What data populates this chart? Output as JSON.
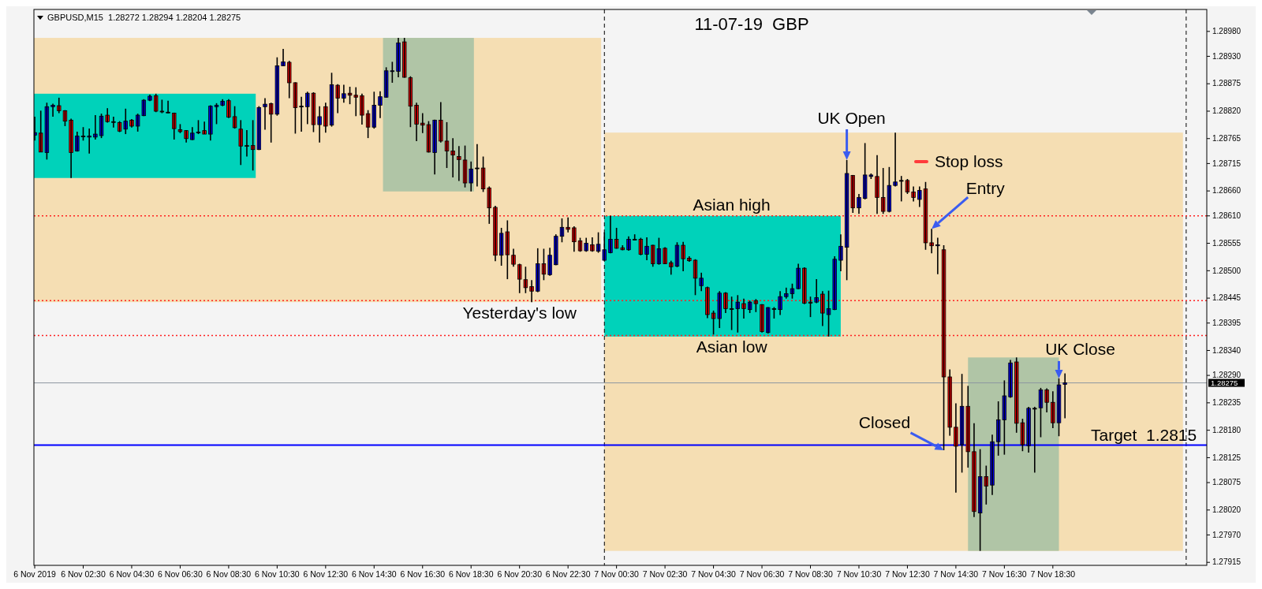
{
  "chart_data": {
    "type": "candlestick",
    "title": "11-07-19  GBP",
    "subtitle": "GBPUSD,M15  1.28272 1.28294 1.28204 1.28275",
    "x": [
      "2019-11-06T00:30",
      "2019-11-06T00:45",
      "2019-11-06T01:00",
      "2019-11-06T01:15",
      "2019-11-06T01:30",
      "2019-11-06T01:45",
      "2019-11-06T02:00",
      "2019-11-06T02:15",
      "2019-11-06T02:30",
      "2019-11-06T02:45",
      "2019-11-06T03:00",
      "2019-11-06T03:15",
      "2019-11-06T03:30",
      "2019-11-06T03:45",
      "2019-11-06T04:00",
      "2019-11-06T04:15",
      "2019-11-06T04:30",
      "2019-11-06T04:45",
      "2019-11-06T05:00",
      "2019-11-06T05:15",
      "2019-11-06T05:30",
      "2019-11-06T05:45",
      "2019-11-06T06:00",
      "2019-11-06T06:15",
      "2019-11-06T06:30",
      "2019-11-06T06:45",
      "2019-11-06T07:00",
      "2019-11-06T07:15",
      "2019-11-06T07:30",
      "2019-11-06T07:45",
      "2019-11-06T08:00",
      "2019-11-06T08:15",
      "2019-11-06T08:30",
      "2019-11-06T08:45",
      "2019-11-06T09:00",
      "2019-11-06T09:15",
      "2019-11-06T09:30",
      "2019-11-06T09:45",
      "2019-11-06T10:00",
      "2019-11-06T10:15",
      "2019-11-06T10:30",
      "2019-11-06T10:45",
      "2019-11-06T11:00",
      "2019-11-06T11:15",
      "2019-11-06T11:30",
      "2019-11-06T11:45",
      "2019-11-06T12:00",
      "2019-11-06T12:15",
      "2019-11-06T12:30",
      "2019-11-06T12:45",
      "2019-11-06T13:00",
      "2019-11-06T13:15",
      "2019-11-06T13:30",
      "2019-11-06T13:45",
      "2019-11-06T14:00",
      "2019-11-06T14:15",
      "2019-11-06T14:30",
      "2019-11-06T14:45",
      "2019-11-06T15:00",
      "2019-11-06T15:15",
      "2019-11-06T15:30",
      "2019-11-06T15:45",
      "2019-11-06T16:00",
      "2019-11-06T16:15",
      "2019-11-06T16:30",
      "2019-11-06T16:45",
      "2019-11-06T17:00",
      "2019-11-06T17:15",
      "2019-11-06T17:30",
      "2019-11-06T17:45",
      "2019-11-06T18:00",
      "2019-11-06T18:15",
      "2019-11-06T18:30",
      "2019-11-06T18:45",
      "2019-11-06T19:00",
      "2019-11-06T19:15",
      "2019-11-06T19:30",
      "2019-11-06T19:45",
      "2019-11-06T20:00",
      "2019-11-06T20:15",
      "2019-11-06T20:30",
      "2019-11-06T20:45",
      "2019-11-06T21:00",
      "2019-11-06T21:15",
      "2019-11-06T21:30",
      "2019-11-06T21:45",
      "2019-11-06T22:00",
      "2019-11-06T22:15",
      "2019-11-06T22:30",
      "2019-11-06T22:45",
      "2019-11-06T23:00",
      "2019-11-06T23:15",
      "2019-11-06T23:30",
      "2019-11-06T23:45",
      "2019-11-07T00:00",
      "2019-11-07T00:15",
      "2019-11-07T00:30",
      "2019-11-07T00:45",
      "2019-11-07T01:00",
      "2019-11-07T01:15",
      "2019-11-07T01:30",
      "2019-11-07T01:45",
      "2019-11-07T02:00",
      "2019-11-07T02:15",
      "2019-11-07T02:30",
      "2019-11-07T02:45",
      "2019-11-07T03:00",
      "2019-11-07T03:15",
      "2019-11-07T03:30",
      "2019-11-07T03:45",
      "2019-11-07T04:00",
      "2019-11-07T04:15",
      "2019-11-07T04:30",
      "2019-11-07T04:45",
      "2019-11-07T05:00",
      "2019-11-07T05:15",
      "2019-11-07T05:30",
      "2019-11-07T05:45",
      "2019-11-07T06:00",
      "2019-11-07T06:15",
      "2019-11-07T06:30",
      "2019-11-07T06:45",
      "2019-11-07T07:00",
      "2019-11-07T07:15",
      "2019-11-07T07:30",
      "2019-11-07T07:45",
      "2019-11-07T08:00",
      "2019-11-07T08:15",
      "2019-11-07T08:30",
      "2019-11-07T08:45",
      "2019-11-07T09:00",
      "2019-11-07T09:15",
      "2019-11-07T09:30",
      "2019-11-07T09:45",
      "2019-11-07T10:00",
      "2019-11-07T10:15",
      "2019-11-07T10:30",
      "2019-11-07T10:45",
      "2019-11-07T11:00",
      "2019-11-07T11:15",
      "2019-11-07T11:30",
      "2019-11-07T11:45",
      "2019-11-07T12:00",
      "2019-11-07T12:15",
      "2019-11-07T12:30",
      "2019-11-07T12:45",
      "2019-11-07T13:00",
      "2019-11-07T13:15",
      "2019-11-07T13:30",
      "2019-11-07T13:45",
      "2019-11-07T14:00",
      "2019-11-07T14:15",
      "2019-11-07T14:30",
      "2019-11-07T14:45",
      "2019-11-07T15:00",
      "2019-11-07T15:15",
      "2019-11-07T15:30",
      "2019-11-07T15:45",
      "2019-11-07T16:00",
      "2019-11-07T16:15",
      "2019-11-07T16:30",
      "2019-11-07T16:45",
      "2019-11-07T17:00",
      "2019-11-07T17:15",
      "2019-11-07T17:30",
      "2019-11-07T17:45",
      "2019-11-07T18:00",
      "2019-11-07T18:15",
      "2019-11-07T18:30",
      "2019-11-07T18:45",
      "2019-11-07T19:00"
    ],
    "ohlc": [
      [
        1.28772,
        1.28809,
        1.28761,
        1.28777
      ],
      [
        1.28776,
        1.28821,
        1.28738,
        1.28738
      ],
      [
        1.28737,
        1.28837,
        1.28723,
        1.28829
      ],
      [
        1.28829,
        1.28835,
        1.28809,
        1.28832
      ],
      [
        1.28831,
        1.28847,
        1.28816,
        1.28821
      ],
      [
        1.28821,
        1.28822,
        1.2879,
        1.288
      ],
      [
        1.28802,
        1.28805,
        1.28686,
        1.28737
      ],
      [
        1.2874,
        1.28779,
        1.28739,
        1.2877
      ],
      [
        1.2877,
        1.28788,
        1.28761,
        1.2877
      ],
      [
        1.28768,
        1.28785,
        1.28735,
        1.2877
      ],
      [
        1.28768,
        1.28812,
        1.28763,
        1.28774
      ],
      [
        1.28771,
        1.28815,
        1.28766,
        1.2881
      ],
      [
        1.28812,
        1.28826,
        1.28797,
        1.28799
      ],
      [
        1.28799,
        1.28809,
        1.28787,
        1.28799
      ],
      [
        1.28797,
        1.288,
        1.28778,
        1.2878
      ],
      [
        1.28784,
        1.28825,
        1.28774,
        1.288
      ],
      [
        1.28802,
        1.28804,
        1.28787,
        1.2879
      ],
      [
        1.2879,
        1.28815,
        1.28779,
        1.28812
      ],
      [
        1.28811,
        1.28844,
        1.2881,
        1.28842
      ],
      [
        1.28842,
        1.28853,
        1.2884,
        1.2885
      ],
      [
        1.28851,
        1.28855,
        1.28818,
        1.2882
      ],
      [
        1.2882,
        1.28843,
        1.28816,
        1.28819
      ],
      [
        1.28818,
        1.28841,
        1.28816,
        1.28818
      ],
      [
        1.28816,
        1.28817,
        1.28763,
        1.28785
      ],
      [
        1.28783,
        1.28794,
        1.28776,
        1.28779
      ],
      [
        1.28781,
        1.28782,
        1.28757,
        1.28765
      ],
      [
        1.28763,
        1.28788,
        1.28762,
        1.28776
      ],
      [
        1.28777,
        1.28802,
        1.28774,
        1.28778
      ],
      [
        1.28781,
        1.28799,
        1.28774,
        1.28774
      ],
      [
        1.28774,
        1.28832,
        1.28761,
        1.2883
      ],
      [
        1.28829,
        1.28836,
        1.28794,
        1.28832
      ],
      [
        1.28832,
        1.28844,
        1.2883,
        1.2884
      ],
      [
        1.28841,
        1.28844,
        1.28806,
        1.28808
      ],
      [
        1.28809,
        1.2883,
        1.28785,
        1.28787
      ],
      [
        1.28784,
        1.28802,
        1.28712,
        1.2875
      ],
      [
        1.28751,
        1.28782,
        1.28729,
        1.2875
      ],
      [
        1.28751,
        1.28802,
        1.28701,
        1.28743
      ],
      [
        1.28743,
        1.2883,
        1.28742,
        1.28827
      ],
      [
        1.28829,
        1.28846,
        1.28783,
        1.28834
      ],
      [
        1.28835,
        1.28837,
        1.28757,
        1.28814
      ],
      [
        1.28814,
        1.28928,
        1.28811,
        1.28911
      ],
      [
        1.28911,
        1.28945,
        1.2891,
        1.28919
      ],
      [
        1.28918,
        1.28921,
        1.28846,
        1.28877
      ],
      [
        1.28877,
        1.28878,
        1.28775,
        1.28827
      ],
      [
        1.2883,
        1.28849,
        1.28779,
        1.2883
      ],
      [
        1.28829,
        1.28859,
        1.28794,
        1.28856
      ],
      [
        1.28856,
        1.28858,
        1.28778,
        1.28793
      ],
      [
        1.28793,
        1.2883,
        1.28757,
        1.28809
      ],
      [
        1.28829,
        1.28837,
        1.28777,
        1.2879
      ],
      [
        1.28792,
        1.28897,
        1.28789,
        1.28873
      ],
      [
        1.28872,
        1.28874,
        1.28816,
        1.28846
      ],
      [
        1.28846,
        1.28873,
        1.28837,
        1.28855
      ],
      [
        1.28856,
        1.28869,
        1.28834,
        1.28852
      ],
      [
        1.28852,
        1.28868,
        1.2881,
        1.28848
      ],
      [
        1.28851,
        1.28855,
        1.28793,
        1.28812
      ],
      [
        1.28815,
        1.28822,
        1.28766,
        1.28788
      ],
      [
        1.28788,
        1.28859,
        1.28785,
        1.28832
      ],
      [
        1.28832,
        1.2886,
        1.28806,
        1.28849
      ],
      [
        1.28848,
        1.28908,
        1.28847,
        1.28901
      ],
      [
        1.289,
        1.28919,
        1.28877,
        1.28901
      ],
      [
        1.289,
        1.28967,
        1.28888,
        1.28957
      ],
      [
        1.28959,
        1.28967,
        1.28887,
        1.28888
      ],
      [
        1.28887,
        1.2889,
        1.28788,
        1.2883
      ],
      [
        1.28832,
        1.28837,
        1.2876,
        1.28794
      ],
      [
        1.28796,
        1.28816,
        1.28776,
        1.28792
      ],
      [
        1.28793,
        1.288,
        1.28737,
        1.28738
      ],
      [
        1.28737,
        1.28803,
        1.28693,
        1.28802
      ],
      [
        1.28802,
        1.28838,
        1.28757,
        1.2876
      ],
      [
        1.2876,
        1.28798,
        1.28706,
        1.2874
      ],
      [
        1.2874,
        1.28766,
        1.28687,
        1.28732
      ],
      [
        1.28729,
        1.2875,
        1.2868,
        1.28723
      ],
      [
        1.28722,
        1.28751,
        1.28667,
        1.28676
      ],
      [
        1.28676,
        1.28719,
        1.28659,
        1.28704
      ],
      [
        1.28706,
        1.28754,
        1.28669,
        1.28706
      ],
      [
        1.28706,
        1.28729,
        1.28658,
        1.28664
      ],
      [
        1.28666,
        1.28669,
        1.28594,
        1.28626
      ],
      [
        1.28627,
        1.2863,
        1.28519,
        1.28531
      ],
      [
        1.28531,
        1.28586,
        1.2851,
        1.28575
      ],
      [
        1.28578,
        1.28601,
        1.28483,
        1.28532
      ],
      [
        1.28531,
        1.28544,
        1.28508,
        1.28513
      ],
      [
        1.28512,
        1.28514,
        1.28455,
        1.28483
      ],
      [
        1.28482,
        1.28508,
        1.28455,
        1.28466
      ],
      [
        1.28468,
        1.28481,
        1.28437,
        1.28459
      ],
      [
        1.28459,
        1.28545,
        1.28457,
        1.28514
      ],
      [
        1.28514,
        1.28544,
        1.28481,
        1.28493
      ],
      [
        1.28492,
        1.28546,
        1.2849,
        1.28531
      ],
      [
        1.28512,
        1.28573,
        1.28511,
        1.28569
      ],
      [
        1.28569,
        1.28605,
        1.28557,
        1.28587
      ],
      [
        1.28587,
        1.28607,
        1.28577,
        1.28583
      ],
      [
        1.28586,
        1.28589,
        1.28538,
        1.28558
      ],
      [
        1.2856,
        1.28566,
        1.28538,
        1.2854
      ],
      [
        1.2854,
        1.28566,
        1.28538,
        1.28555
      ],
      [
        1.28552,
        1.28567,
        1.28538,
        1.2854
      ],
      [
        1.28539,
        1.28577,
        1.28536,
        1.28553
      ],
      [
        1.28521,
        1.28577,
        1.2852,
        1.28542
      ],
      [
        1.28536,
        1.2861,
        1.28535,
        1.28563
      ],
      [
        1.28563,
        1.28586,
        1.28544,
        1.28545
      ],
      [
        1.28546,
        1.28551,
        1.28541,
        1.28542
      ],
      [
        1.28542,
        1.28569,
        1.2854,
        1.28563
      ],
      [
        1.28563,
        1.28573,
        1.28561,
        1.28563
      ],
      [
        1.28563,
        1.28566,
        1.28531,
        1.28533
      ],
      [
        1.28533,
        1.28567,
        1.28521,
        1.28549
      ],
      [
        1.28551,
        1.28552,
        1.28508,
        1.28514
      ],
      [
        1.28514,
        1.28566,
        1.28512,
        1.28544
      ],
      [
        1.28545,
        1.28547,
        1.28513,
        1.28514
      ],
      [
        1.28516,
        1.2852,
        1.28492,
        1.28508
      ],
      [
        1.28509,
        1.28557,
        1.28507,
        1.28551
      ],
      [
        1.28551,
        1.28558,
        1.28499,
        1.28524
      ],
      [
        1.28525,
        1.28529,
        1.28518,
        1.2852
      ],
      [
        1.28521,
        1.28523,
        1.28451,
        1.28485
      ],
      [
        1.2847,
        1.28496,
        1.28459,
        1.28485
      ],
      [
        1.28466,
        1.28468,
        1.28405,
        1.28412
      ],
      [
        1.28415,
        1.2842,
        1.28372,
        1.28404
      ],
      [
        1.28404,
        1.28459,
        1.28385,
        1.28455
      ],
      [
        1.28455,
        1.28457,
        1.28415,
        1.28424
      ],
      [
        1.28424,
        1.28448,
        1.28381,
        1.28424
      ],
      [
        1.28424,
        1.28451,
        1.28376,
        1.28437
      ],
      [
        1.28434,
        1.28444,
        1.28404,
        1.28424
      ],
      [
        1.28422,
        1.2844,
        1.28415,
        1.28437
      ],
      [
        1.2844,
        1.28443,
        1.28417,
        1.28434
      ],
      [
        1.28432,
        1.28433,
        1.28376,
        1.28378
      ],
      [
        1.28376,
        1.28427,
        1.28374,
        1.28426
      ],
      [
        1.28424,
        1.28427,
        1.28404,
        1.28424
      ],
      [
        1.28422,
        1.28459,
        1.28411,
        1.28448
      ],
      [
        1.28448,
        1.28466,
        1.28444,
        1.28454
      ],
      [
        1.28454,
        1.28474,
        1.28444,
        1.28464
      ],
      [
        1.28464,
        1.28514,
        1.28463,
        1.28505
      ],
      [
        1.28505,
        1.28507,
        1.28433,
        1.28435
      ],
      [
        1.28437,
        1.28448,
        1.28407,
        1.28435
      ],
      [
        1.28437,
        1.28483,
        1.28435,
        1.28446
      ],
      [
        1.28453,
        1.28459,
        1.28389,
        1.28415
      ],
      [
        1.28412,
        1.2846,
        1.28368,
        1.28424
      ],
      [
        1.28422,
        1.28529,
        1.28421,
        1.28523
      ],
      [
        1.28521,
        1.28573,
        1.28499,
        1.28549
      ],
      [
        1.28547,
        1.28722,
        1.28481,
        1.28695
      ],
      [
        1.28691,
        1.28692,
        1.28616,
        1.28626
      ],
      [
        1.28626,
        1.28654,
        1.28614,
        1.28647
      ],
      [
        1.28645,
        1.28756,
        1.28643,
        1.28692
      ],
      [
        1.28689,
        1.28695,
        1.28684,
        1.28692
      ],
      [
        1.28689,
        1.28732,
        1.28614,
        1.28647
      ],
      [
        1.28647,
        1.28706,
        1.28614,
        1.28619
      ],
      [
        1.28619,
        1.28708,
        1.28617,
        1.28671
      ],
      [
        1.28671,
        1.28777,
        1.28669,
        1.28678
      ],
      [
        1.28681,
        1.2869,
        1.28639,
        1.28681
      ],
      [
        1.28681,
        1.28684,
        1.28654,
        1.28658
      ],
      [
        1.28658,
        1.28669,
        1.28639,
        1.28647
      ],
      [
        1.28643,
        1.28669,
        1.28628,
        1.28661
      ],
      [
        1.28664,
        1.28678,
        1.28542,
        1.28556
      ],
      [
        1.28556,
        1.28584,
        1.28535,
        1.2855
      ],
      [
        1.2855,
        1.28566,
        1.28493,
        1.28552
      ],
      [
        1.28542,
        1.28551,
        1.2814,
        1.28287
      ],
      [
        1.28287,
        1.28302,
        1.28169,
        1.28186
      ],
      [
        1.28186,
        1.28234,
        1.28055,
        1.28148
      ],
      [
        1.28151,
        1.28293,
        1.28095,
        1.28228
      ],
      [
        1.28228,
        1.28269,
        1.28105,
        1.28137
      ],
      [
        1.28137,
        1.28194,
        1.28006,
        1.28017
      ],
      [
        1.28014,
        1.28142,
        1.27938,
        1.28087
      ],
      [
        1.28087,
        1.28109,
        1.28031,
        1.28068
      ],
      [
        1.2807,
        1.28171,
        1.2805,
        1.28157
      ],
      [
        1.28157,
        1.28238,
        1.28129,
        1.28201
      ],
      [
        1.28201,
        1.2828,
        1.28131,
        1.28249
      ],
      [
        1.28247,
        1.28321,
        1.28245,
        1.28315
      ],
      [
        1.28317,
        1.28326,
        1.28175,
        1.28194
      ],
      [
        1.28195,
        1.28203,
        1.28138,
        1.28151
      ],
      [
        1.28149,
        1.28227,
        1.28135,
        1.28224
      ],
      [
        1.28224,
        1.28227,
        1.28095,
        1.28224
      ],
      [
        1.28225,
        1.28265,
        1.28166,
        1.28261
      ],
      [
        1.28261,
        1.28264,
        1.28216,
        1.28236
      ],
      [
        1.28236,
        1.28258,
        1.28184,
        1.28195
      ],
      [
        1.28195,
        1.28284,
        1.28168,
        1.28271
      ],
      [
        1.28272,
        1.28294,
        1.28204,
        1.28275
      ]
    ],
    "xlim": [
      "2019-11-06T00:28",
      "2019-11-08T00:51"
    ],
    "xticks": [
      {
        "value": "2019-11-06T00:30",
        "label": "6 Nov 2019"
      },
      {
        "value": "2019-11-06T02:30",
        "label": "6 Nov 02:30"
      },
      {
        "value": "2019-11-06T04:30",
        "label": "6 Nov 04:30"
      },
      {
        "value": "2019-11-06T06:30",
        "label": "6 Nov 06:30"
      },
      {
        "value": "2019-11-06T08:30",
        "label": "6 Nov 08:30"
      },
      {
        "value": "2019-11-06T10:30",
        "label": "6 Nov 10:30"
      },
      {
        "value": "2019-11-06T12:30",
        "label": "6 Nov 12:30"
      },
      {
        "value": "2019-11-06T14:30",
        "label": "6 Nov 14:30"
      },
      {
        "value": "2019-11-06T16:30",
        "label": "6 Nov 16:30"
      },
      {
        "value": "2019-11-06T18:30",
        "label": "6 Nov 18:30"
      },
      {
        "value": "2019-11-06T20:30",
        "label": "6 Nov 20:30"
      },
      {
        "value": "2019-11-06T22:30",
        "label": "6 Nov 22:30"
      },
      {
        "value": "2019-11-07T00:30",
        "label": "7 Nov 00:30"
      },
      {
        "value": "2019-11-07T02:30",
        "label": "7 Nov 02:30"
      },
      {
        "value": "2019-11-07T04:30",
        "label": "7 Nov 04:30"
      },
      {
        "value": "2019-11-07T06:30",
        "label": "7 Nov 06:30"
      },
      {
        "value": "2019-11-07T08:30",
        "label": "7 Nov 08:30"
      },
      {
        "value": "2019-11-07T10:30",
        "label": "7 Nov 10:30"
      },
      {
        "value": "2019-11-07T12:30",
        "label": "7 Nov 12:30"
      },
      {
        "value": "2019-11-07T14:30",
        "label": "7 Nov 14:30"
      },
      {
        "value": "2019-11-07T16:30",
        "label": "7 Nov 16:30"
      },
      {
        "value": "2019-11-07T18:30",
        "label": "7 Nov 18:30"
      }
    ],
    "ylim": [
      1.27909,
      1.29024
    ],
    "yticks": [
      {
        "value": 1.2898,
        "label": "1.28980"
      },
      {
        "value": 1.2893,
        "label": "1.28930"
      },
      1.28875,
      {
        "value": 1.2882,
        "label": "1.28820"
      },
      1.28765,
      1.28715,
      {
        "value": 1.2866,
        "label": "1.28660"
      },
      {
        "value": 1.2861,
        "label": "1.28610"
      },
      1.28555,
      {
        "value": 1.285,
        "label": "1.28500"
      },
      1.28445,
      1.28395,
      {
        "value": 1.2834,
        "label": "1.28340"
      },
      {
        "value": 1.2829,
        "label": "1.28290"
      },
      1.28235,
      {
        "value": 1.2818,
        "label": "1.28180"
      },
      1.28125,
      1.28075,
      {
        "value": 1.2802,
        "label": "1.28020"
      },
      {
        "value": 1.2797,
        "label": "1.27970"
      },
      1.27915
    ],
    "bands": [
      {
        "axis": "x",
        "from": "2019-11-06T00:22",
        "to": "2019-11-06T23:52",
        "color": "#f5deb3"
      },
      {
        "axis": "x",
        "from": "2019-11-07T00:00",
        "to": "2019-11-07T23:52",
        "color": "#f5deb3"
      },
      {
        "axis": "x",
        "from": "2019-11-06T00:22",
        "to": "2019-11-06T09:37",
        "color": "#00d2ba"
      },
      {
        "axis": "x",
        "from": "2019-11-07T00:00",
        "to": "2019-11-07T09:45",
        "color": "#00d2ba"
      },
      {
        "axis": "x",
        "from": "2019-11-06T14:52",
        "to": "2019-11-06T18:37",
        "color": "#b0c5a6"
      },
      {
        "axis": "x",
        "from": "2019-11-07T15:00",
        "to": "2019-11-07T18:45",
        "color": "#b0c5a6"
      }
    ],
    "ref_lines": [
      {
        "axis": "x",
        "value": "2019-11-07T00:00",
        "color": "#000000",
        "line_style": "dashed"
      },
      {
        "axis": "x",
        "value": "2019-11-08T00:00",
        "color": "#000000",
        "line_style": "dashed"
      },
      {
        "axis": "y",
        "value": 1.2861,
        "color": "#ff2020",
        "line_style": "dotted"
      },
      {
        "axis": "y",
        "value": 1.2844,
        "color": "#ff2020",
        "line_style": "dotted"
      },
      {
        "axis": "y",
        "value": 1.2837,
        "color": "#ff2020",
        "line_style": "dotted"
      },
      {
        "axis": "y",
        "value": 1.2815,
        "color": "#0000ff",
        "line_style": "solid"
      },
      {
        "axis": "y",
        "value": 1.28275,
        "color": "#8c96a0",
        "line_style": "solid",
        "label": "1.28275"
      }
    ],
    "annotations": [
      {
        "text": "UK Open",
        "x": "2019-11-07T10:00",
        "y": 1.28722
      },
      "Stop loss",
      {
        "text": "Entry",
        "x": "2019-11-07T13:30",
        "y": 1.28584
      },
      {
        "text": "Closed",
        "x": "2019-11-07T14:00",
        "y": 1.2814
      },
      {
        "text": "UK Close",
        "x": "2019-11-07T18:45",
        "y": 1.28284
      },
      {
        "text": "Asian high",
        "x": "2019-11-07T05:15",
        "y": 1.2861
      },
      {
        "text": "Yesterday's low",
        "x": "2019-11-06T20:30",
        "y": 1.2844
      },
      {
        "text": "Asian low",
        "x": "2019-11-07T05:15",
        "y": 1.2837
      },
      {
        "text": "Target  1.2815",
        "x": "2019-11-07T22:15",
        "y": 1.2815
      }
    ]
  }
}
